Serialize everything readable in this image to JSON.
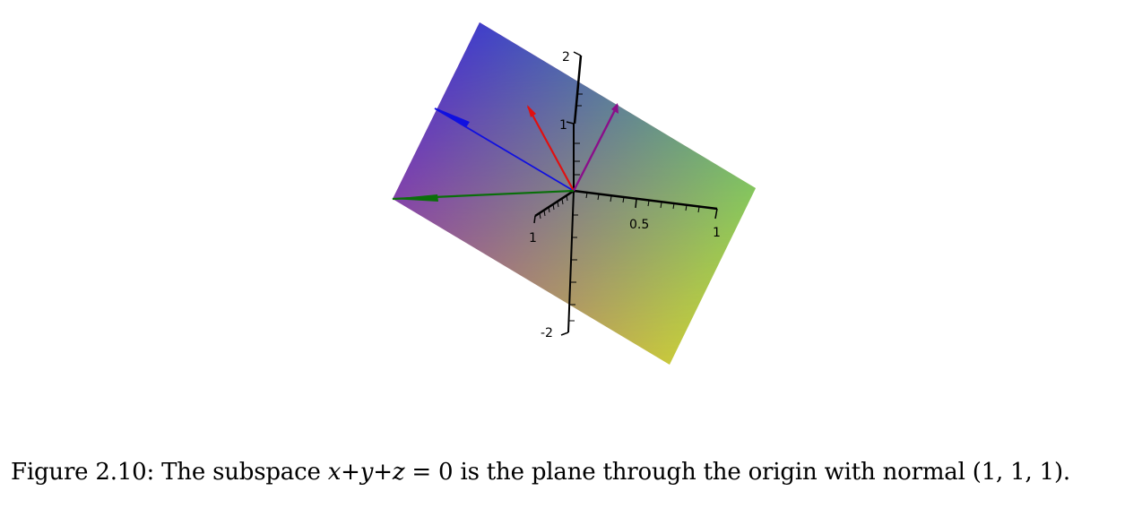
{
  "figure": {
    "tick_labels": {
      "z_pos": "2",
      "z_one": "1",
      "z_neg": "-2",
      "x_one": "1",
      "y_half": "0.5",
      "y_one": "1"
    },
    "plane_colors": [
      "#3f3fca",
      "#c23f91",
      "#43c97a",
      "#c9c93d"
    ],
    "vector_colors": {
      "blue": "#1010e0",
      "red": "#e01010",
      "purple": "#8a0f8a",
      "green": "#0a6e0a"
    }
  },
  "caption": {
    "prefix": "Figure 2.10: The subspace ",
    "math": "x+y+z",
    "suffix": " = 0 is the plane through the origin with normal (1, 1, 1)."
  }
}
